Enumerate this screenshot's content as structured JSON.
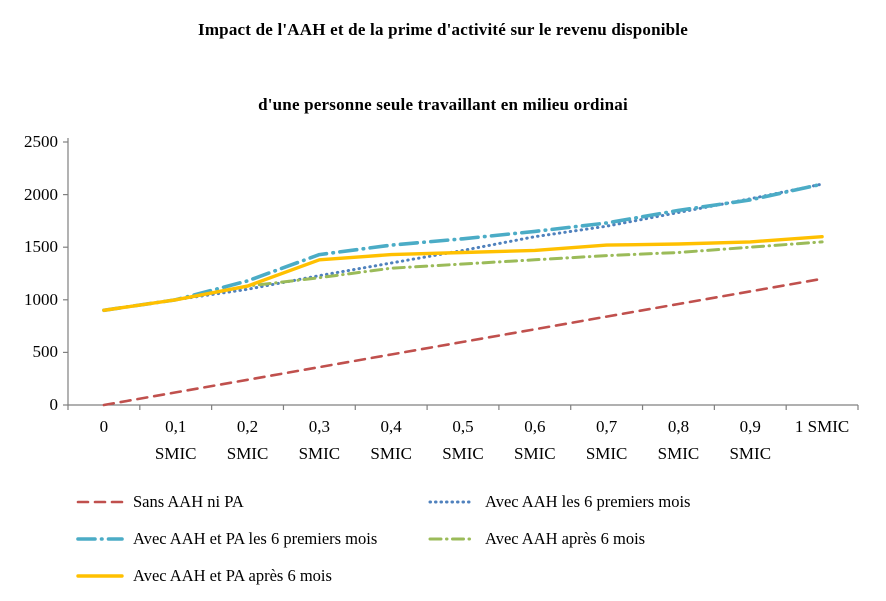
{
  "chart_data": {
    "type": "line",
    "title": "Impact de l'AAH et de la prime d'activité sur le revenu disponible",
    "subtitle": "d'une personne seule travaillant en milieu ordinai",
    "x": [
      0,
      0.1,
      0.2,
      0.3,
      0.4,
      0.5,
      0.6,
      0.7,
      0.8,
      0.9,
      1
    ],
    "categories_display": [
      [
        "0"
      ],
      [
        "0,1",
        "SMIC"
      ],
      [
        "0,2",
        "SMIC"
      ],
      [
        "0,3",
        "SMIC"
      ],
      [
        "0,4",
        "SMIC"
      ],
      [
        "0,5",
        "SMIC"
      ],
      [
        "0,6",
        "SMIC"
      ],
      [
        "0,7",
        "SMIC"
      ],
      [
        "0,8",
        "SMIC"
      ],
      [
        "0,9",
        "SMIC"
      ],
      [
        "1 SMIC"
      ]
    ],
    "xlabel": "",
    "ylabel": "",
    "ylim": [
      0,
      2500
    ],
    "yticks": [
      0,
      500,
      1000,
      1500,
      2000,
      2500
    ],
    "grid": false,
    "legend_position": "bottom",
    "axis_color": "#808080",
    "series": [
      {
        "name": "Sans AAH ni PA",
        "color": "#C0504D",
        "style": "dashed",
        "values": [
          0,
          120,
          240,
          360,
          480,
          600,
          720,
          840,
          960,
          1080,
          1200
        ]
      },
      {
        "name": "Avec AAH les 6 premiers mois",
        "color": "#4F81BD",
        "style": "dotted",
        "values": [
          900,
          1000,
          1100,
          1230,
          1350,
          1470,
          1600,
          1700,
          1830,
          1960,
          2100
        ]
      },
      {
        "name": "Avec AAH et PA les 6 premiers mois",
        "color": "#4BACC6",
        "style": "long-dash-dot",
        "values": [
          900,
          1000,
          1180,
          1430,
          1520,
          1580,
          1650,
          1730,
          1850,
          1950,
          2100
        ]
      },
      {
        "name": "Avec AAH après 6 mois",
        "color": "#9BBB59",
        "style": "dash-dot",
        "values": [
          900,
          1000,
          1130,
          1210,
          1300,
          1340,
          1380,
          1420,
          1450,
          1500,
          1550
        ]
      },
      {
        "name": "Avec AAH et PA après 6 mois",
        "color": "#FFC000",
        "style": "solid",
        "values": [
          900,
          1000,
          1130,
          1380,
          1430,
          1450,
          1470,
          1520,
          1530,
          1550,
          1600
        ]
      }
    ]
  }
}
